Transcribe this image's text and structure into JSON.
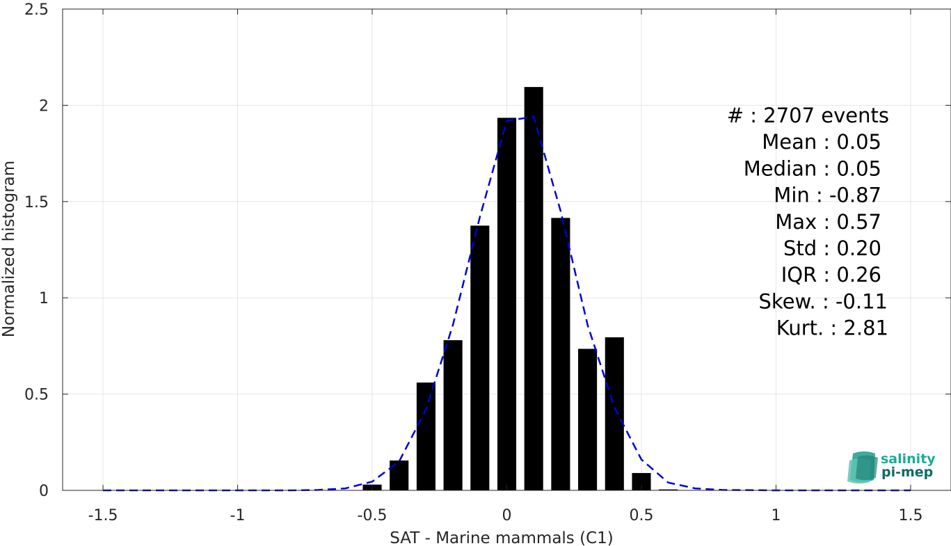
{
  "chart_data": {
    "type": "bar",
    "xlabel": "SAT - Marine mammals (C1)",
    "ylabel": "Normalized histogram",
    "xlim": [
      -1.65,
      1.65
    ],
    "ylim": [
      0,
      2.5
    ],
    "grid": true,
    "x_ticks": [
      -1.5,
      -1,
      -0.5,
      0,
      0.5,
      1,
      1.5
    ],
    "x_tick_labels": [
      "-1.5",
      "-1",
      "-0.5",
      "0",
      "0.5",
      "1",
      "1.5"
    ],
    "y_ticks": [
      0,
      0.5,
      1,
      1.5,
      2,
      2.5
    ],
    "y_tick_labels": [
      "0",
      "0.5",
      "1",
      "1.5",
      "2",
      "2.5"
    ],
    "bars": {
      "color": "#000000",
      "width": 0.07,
      "x": [
        -0.5,
        -0.4,
        -0.3,
        -0.2,
        -0.1,
        0.0,
        0.1,
        0.2,
        0.3,
        0.4,
        0.5,
        0.6
      ],
      "values": [
        0.03,
        0.155,
        0.56,
        0.78,
        1.375,
        1.935,
        2.095,
        1.415,
        0.735,
        0.795,
        0.09,
        0.005
      ]
    },
    "series": [
      {
        "type": "line",
        "style": "dashed",
        "color": "#0000dd",
        "x": [
          -1.5,
          -1.2,
          -1.0,
          -0.9,
          -0.8,
          -0.7,
          -0.6,
          -0.5,
          -0.4,
          -0.3,
          -0.2,
          -0.1,
          0.0,
          0.1,
          0.2,
          0.3,
          0.4,
          0.5,
          0.6,
          0.7,
          0.8,
          1.0,
          1.2,
          1.5
        ],
        "y": [
          0.0,
          0.0,
          0.0,
          0.0,
          0.0,
          0.002,
          0.01,
          0.045,
          0.15,
          0.42,
          0.86,
          1.42,
          1.92,
          1.94,
          1.45,
          0.86,
          0.43,
          0.16,
          0.04,
          0.01,
          0.002,
          0.0,
          0.0,
          0.0
        ]
      }
    ],
    "annotations": [
      "#  : 2707 events",
      "Mean : 0.05",
      "Median : 0.05",
      "Min : -0.87",
      "Max : 0.57",
      "Std : 0.20",
      "IQR : 0.26",
      "Skew. : -0.11",
      "Kurt. : 2.81"
    ]
  },
  "logo": {
    "line1": "salinity",
    "line2": "pi-mep",
    "color1": "#1aab9b",
    "color2": "#0f6b63"
  }
}
